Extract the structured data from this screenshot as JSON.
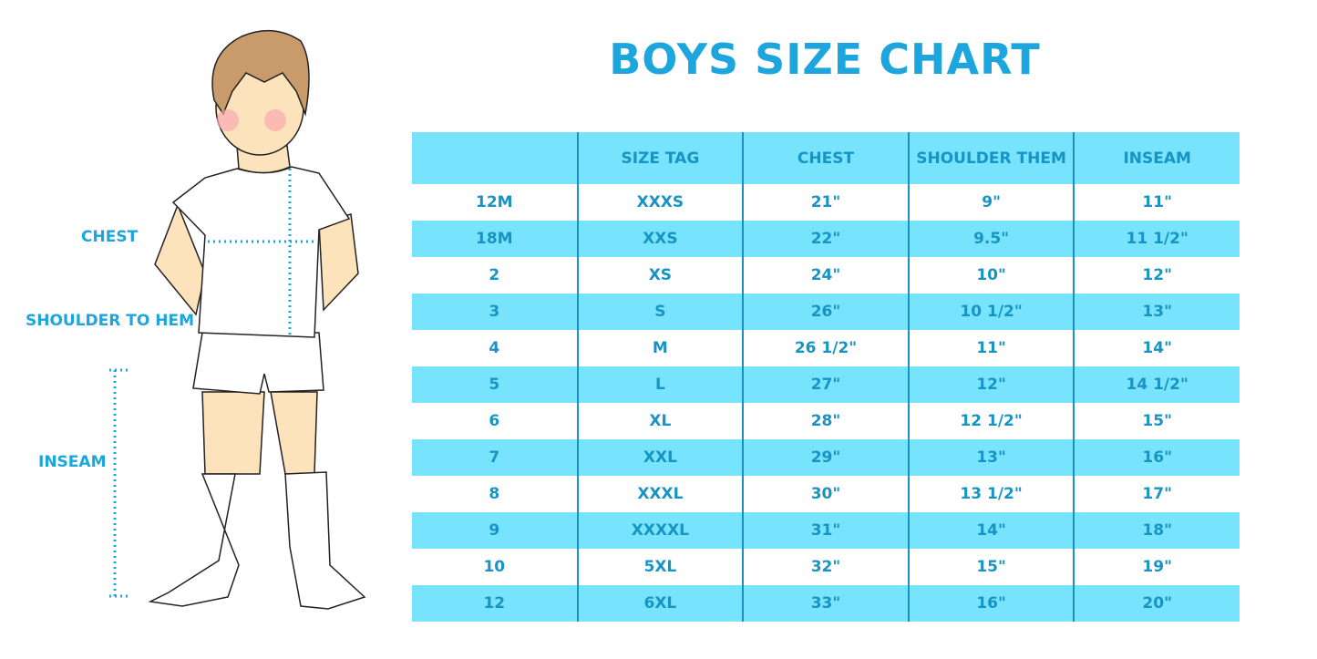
{
  "title": "BOYS SIZE CHART",
  "figure_labels": {
    "chest": "CHEST",
    "shoulder_to_hem": "SHOULDER TO HEM",
    "inseam": "INSEAM"
  },
  "colors": {
    "accent": "#1ca6dd",
    "band": "#77e3fc",
    "table_text": "#1894c4"
  },
  "table": {
    "headers": [
      "",
      "SIZE TAG",
      "CHEST",
      "SHOULDER THEM",
      "INSEAM"
    ],
    "rows": [
      [
        "12M",
        "XXXS",
        "21\"",
        "9\"",
        "11\""
      ],
      [
        "18M",
        "XXS",
        "22\"",
        "9.5\"",
        "11 1/2\""
      ],
      [
        "2",
        "XS",
        "24\"",
        "10\"",
        "12\""
      ],
      [
        "3",
        "S",
        "26\"",
        "10 1/2\"",
        "13\""
      ],
      [
        "4",
        "M",
        "26 1/2\"",
        "11\"",
        "14\""
      ],
      [
        "5",
        "L",
        "27\"",
        "12\"",
        "14 1/2\""
      ],
      [
        "6",
        "XL",
        "28\"",
        "12 1/2\"",
        "15\""
      ],
      [
        "7",
        "XXL",
        "29\"",
        "13\"",
        "16\""
      ],
      [
        "8",
        "XXXL",
        "30\"",
        "13 1/2\"",
        "17\""
      ],
      [
        "9",
        "XXXXL",
        "31\"",
        "14\"",
        "18\""
      ],
      [
        "10",
        "5XL",
        "32\"",
        "15\"",
        "19\""
      ],
      [
        "12",
        "6XL",
        "33\"",
        "16\"",
        "20\""
      ]
    ]
  }
}
